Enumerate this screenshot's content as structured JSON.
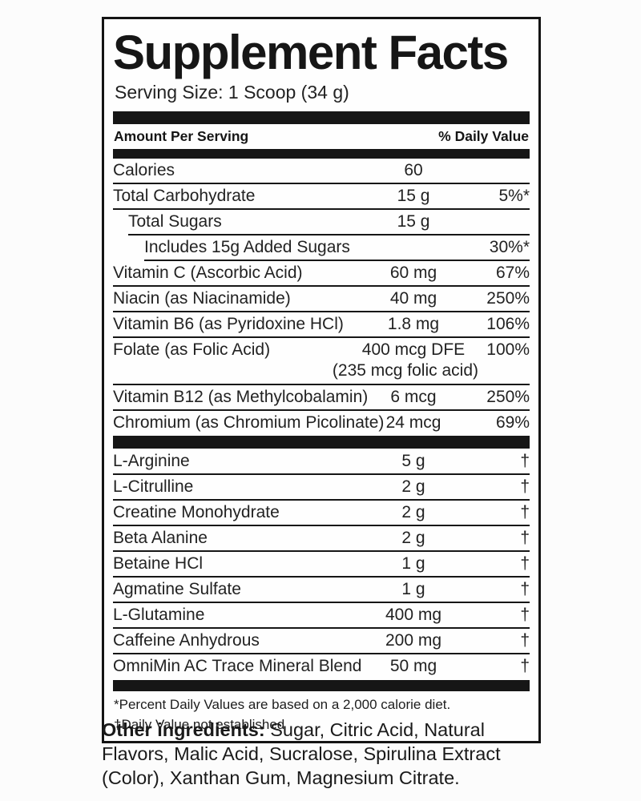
{
  "panel": {
    "title": "Supplement Facts",
    "serving_size": "Serving Size: 1 Scoop (34 g)",
    "header": {
      "amount_label": "Amount Per Serving",
      "dv_label": "% Daily Value"
    },
    "rows": [
      {
        "name": "Calories",
        "amount": "60",
        "dv": "",
        "indent": 0
      },
      {
        "name": "Total Carbohydrate",
        "amount": "15 g",
        "dv": "5%*",
        "indent": 0
      },
      {
        "name": "Total Sugars",
        "amount": "15 g",
        "dv": "",
        "indent": 1
      },
      {
        "name": "Includes 15g Added Sugars",
        "amount": "",
        "dv": "30%*",
        "indent": 2
      },
      {
        "name": "Vitamin C (Ascorbic Acid)",
        "amount": "60 mg",
        "dv": "67%",
        "indent": 0
      },
      {
        "name": "Niacin (as Niacinamide)",
        "amount": "40 mg",
        "dv": "250%",
        "indent": 0
      },
      {
        "name": "Vitamin B6 (as Pyridoxine HCl)",
        "amount": "1.8 mg",
        "dv": "106%",
        "indent": 0
      },
      {
        "name": "Folate (as Folic Acid)",
        "amount": "400 mcg DFE",
        "dv": "100%",
        "indent": 0,
        "note": "(235 mcg folic acid)"
      },
      {
        "name": "Vitamin B12 (as Methylcobalamin)",
        "amount": "6 mcg",
        "dv": "250%",
        "indent": 0
      },
      {
        "name": "Chromium (as Chromium Picolinate)",
        "amount": "24 mcg",
        "dv": "69%",
        "indent": 0
      },
      {
        "name": "L-Arginine",
        "amount": "5 g",
        "dv": "†",
        "indent": 0,
        "bar_before": true
      },
      {
        "name": "L-Citrulline",
        "amount": "2 g",
        "dv": "†",
        "indent": 0
      },
      {
        "name": "Creatine Monohydrate",
        "amount": "2 g",
        "dv": "†",
        "indent": 0
      },
      {
        "name": "Beta Alanine",
        "amount": "2 g",
        "dv": "†",
        "indent": 0
      },
      {
        "name": "Betaine HCl",
        "amount": "1 g",
        "dv": "†",
        "indent": 0
      },
      {
        "name": "Agmatine Sulfate",
        "amount": "1 g",
        "dv": "†",
        "indent": 0
      },
      {
        "name": "L-Glutamine",
        "amount": "400 mg",
        "dv": "†",
        "indent": 0
      },
      {
        "name": "Caffeine Anhydrous",
        "amount": "200 mg",
        "dv": "†",
        "indent": 0
      },
      {
        "name": "OmniMin AC Trace Mineral Blend",
        "amount": "50 mg",
        "dv": "†",
        "indent": 0
      }
    ],
    "footnotes": {
      "line1": "*Percent Daily Values are based on a 2,000 calorie diet.",
      "line2": "†Daily Value not established"
    }
  },
  "other_ingredients": {
    "label": "Other ingredients:",
    "text": " Sugar, Citric Acid, Natural Flavors, Malic Acid, Sucralose, Spirulina Extract (Color), Xanthan Gum, Magnesium Citrate."
  },
  "colors": {
    "text": "#1e1e1e",
    "rule": "#161616",
    "background": "#fcfcfc",
    "panel_background": "#fefefe"
  }
}
